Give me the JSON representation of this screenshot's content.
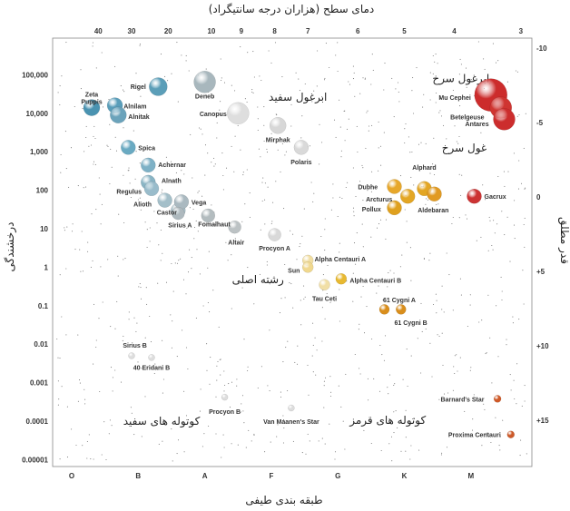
{
  "chart_data": {
    "type": "scatter",
    "title": "",
    "top_axis": {
      "label": "دمای سطح (هزاران درجه سانتیگراد)",
      "ticks": [
        "40",
        "30",
        "20",
        "10",
        "9",
        "8",
        "7",
        "6",
        "5",
        "4",
        "3"
      ],
      "tick_positions_class": [
        0.4,
        0.9,
        1.45,
        2.1,
        2.55,
        3.05,
        3.55,
        4.3,
        5.0,
        5.75,
        6.75
      ]
    },
    "x_axis": {
      "label": "طبقه بندی طیفی",
      "categories": [
        "O",
        "B",
        "A",
        "F",
        "G",
        "K",
        "M"
      ]
    },
    "y_axis_left": {
      "label": "درخشندگی",
      "ticks": [
        100000,
        10000,
        1000,
        100,
        10,
        1,
        0.1,
        0.01,
        0.001,
        0.0001,
        1e-05
      ],
      "tick_labels": [
        "100,000",
        "10,000",
        "1,000",
        "100",
        "10",
        "1",
        "0.1",
        "0.01",
        "0.001",
        "0.0001",
        "0.00001"
      ],
      "scale": "log",
      "ylim": [
        1e-05,
        100000
      ]
    },
    "y_axis_right": {
      "label": "قدر مطلق",
      "ticks": [
        "-10",
        "-5",
        "0",
        "+5",
        "+10",
        "+15"
      ],
      "tick_values": [
        -10,
        -5,
        0,
        5,
        10,
        15
      ]
    },
    "regions": [
      {
        "label": "ابرغول سرخ",
        "class": 5.85,
        "lum": 79400
      },
      {
        "label": "ابرغول سفید",
        "class": 3.4,
        "lum": 26300
      },
      {
        "label": "غول سرخ",
        "class": 5.9,
        "lum": 1259
      },
      {
        "label": "رشته اصلی",
        "class": 2.8,
        "lum": 0.48
      },
      {
        "label": "کوتوله های قرمز",
        "class": 4.75,
        "lum": 0.000105
      },
      {
        "label": "کوتوله های سفید",
        "class": 1.35,
        "lum": 0.0001
      }
    ],
    "stars": [
      {
        "name": "Zeta Puppis",
        "class": 0.3,
        "lum": 14000,
        "color": "#4a93b1",
        "r": 9,
        "lx": 0.3,
        "ly": 31600,
        "anchor": "middle"
      },
      {
        "name": "Rigel",
        "class": 1.3,
        "lum": 49000,
        "color": "#5b9eb8",
        "r": 10,
        "lx": 1.0,
        "ly": 50100,
        "anchor": "middle"
      },
      {
        "name": "Deneb",
        "class": 2.0,
        "lum": 65000,
        "color": "#a8b7bd",
        "r": 12,
        "lx": 2.0,
        "ly": 28200,
        "anchor": "middle"
      },
      {
        "name": "Alnilam",
        "class": 0.65,
        "lum": 16000,
        "color": "#5a9eba",
        "r": 8.5,
        "lx": 0.78,
        "ly": 15800,
        "anchor": "start"
      },
      {
        "name": "Alnitak",
        "class": 0.7,
        "lum": 9000,
        "color": "#6ba3bb",
        "r": 9,
        "lx": 0.85,
        "ly": 8510,
        "anchor": "start"
      },
      {
        "name": "Canopus",
        "class": 2.5,
        "lum": 10000,
        "color": "#dedede",
        "r": 12,
        "lx": 2.33,
        "ly": 10000,
        "anchor": "end"
      },
      {
        "name": "Mirphak",
        "class": 3.1,
        "lum": 4800,
        "color": "#d7d7d7",
        "r": 9,
        "lx": 3.1,
        "ly": 2090,
        "anchor": "middle"
      },
      {
        "name": "Polaris",
        "class": 3.45,
        "lum": 1300,
        "color": "#d9d9d9",
        "r": 8,
        "lx": 3.45,
        "ly": 562,
        "anchor": "middle"
      },
      {
        "name": "Spica",
        "class": 0.85,
        "lum": 1300,
        "color": "#6aaac2",
        "r": 8,
        "lx": 1.0,
        "ly": 1290,
        "anchor": "start"
      },
      {
        "name": "Achernar",
        "class": 1.15,
        "lum": 450,
        "color": "#7eb1c6",
        "r": 8,
        "lx": 1.3,
        "ly": 468,
        "anchor": "start"
      },
      {
        "name": "Alnath",
        "class": 1.15,
        "lum": 160,
        "color": "#89b4c4",
        "r": 8,
        "lx": 1.35,
        "ly": 182,
        "anchor": "start"
      },
      {
        "name": "Regulus",
        "class": 1.2,
        "lum": 110,
        "color": "#99bccb",
        "r": 8,
        "lx": 1.05,
        "ly": 95,
        "anchor": "end"
      },
      {
        "name": "Alioth",
        "class": 1.4,
        "lum": 55,
        "color": "#a4bfc9",
        "r": 8,
        "lx": 1.2,
        "ly": 45,
        "anchor": "end"
      },
      {
        "name": "Castor",
        "class": 1.6,
        "lum": 30,
        "color": "#a8bec6",
        "r": 8,
        "lx": 1.28,
        "ly": 27.5,
        "anchor": "start"
      },
      {
        "name": "Vega",
        "class": 1.65,
        "lum": 50,
        "color": "#aab9c0",
        "r": 8,
        "lx": 1.8,
        "ly": 50,
        "anchor": "start"
      },
      {
        "name": "Sirius A",
        "class": 1.6,
        "lum": 25,
        "color": "#aeb9be",
        "r": 7,
        "lx": 1.45,
        "ly": 12.6,
        "anchor": "start"
      },
      {
        "name": "Fomalhaut",
        "class": 2.05,
        "lum": 22,
        "color": "#b3bcbf",
        "r": 7.5,
        "lx": 1.9,
        "ly": 13.5,
        "anchor": "start"
      },
      {
        "name": "Altair",
        "class": 2.45,
        "lum": 11,
        "color": "#bcc2c4",
        "r": 7,
        "lx": 2.35,
        "ly": 4.6,
        "anchor": "start"
      },
      {
        "name": "Procyon A",
        "class": 3.05,
        "lum": 7,
        "color": "#d9d9d9",
        "r": 7,
        "lx": 3.05,
        "ly": 3.2,
        "anchor": "middle"
      },
      {
        "name": "Alpha Centauri A",
        "class": 3.55,
        "lum": 1.5,
        "color": "#f1dea2",
        "r": 6,
        "lx": 3.65,
        "ly": 1.66,
        "anchor": "start"
      },
      {
        "name": "Sun",
        "class": 3.55,
        "lum": 1.0,
        "color": "#f0d88e",
        "r": 6,
        "lx": 3.34,
        "ly": 0.85,
        "anchor": "middle"
      },
      {
        "name": "Alpha Centauri B",
        "class": 4.05,
        "lum": 0.5,
        "color": "#e8b931",
        "r": 6,
        "lx": 4.18,
        "ly": 0.46,
        "anchor": "start"
      },
      {
        "name": "Tau Ceti",
        "class": 3.8,
        "lum": 0.35,
        "color": "#f1dfa6",
        "r": 6,
        "lx": 3.8,
        "ly": 0.158,
        "anchor": "middle"
      },
      {
        "name": "61 Cygni A",
        "class": 4.7,
        "lum": 0.08,
        "color": "#d98e1c",
        "r": 5.5,
        "lx": 4.68,
        "ly": 0.145,
        "anchor": "start"
      },
      {
        "name": "61 Cygni B",
        "class": 4.95,
        "lum": 0.08,
        "color": "#d98e1c",
        "r": 5.5,
        "lx": 4.85,
        "ly": 0.037,
        "anchor": "start"
      },
      {
        "name": "Mu Cephei",
        "class": 6.3,
        "lum": 30000,
        "color": "#cc2c2c",
        "r": 18,
        "lx": 6.0,
        "ly": 26000,
        "anchor": "end"
      },
      {
        "name": "Betelgeuse",
        "class": 6.45,
        "lum": 14000,
        "color": "#cf3531",
        "r": 12,
        "lx": 6.2,
        "ly": 8200,
        "anchor": "end"
      },
      {
        "name": "Antares",
        "class": 6.5,
        "lum": 7000,
        "color": "#cc2d2d",
        "r": 12,
        "lx": 6.27,
        "ly": 5500,
        "anchor": "end"
      },
      {
        "name": "Alphard",
        "class": 5.3,
        "lum": 110,
        "color": "#e3a624",
        "r": 8,
        "lx": 5.3,
        "ly": 398,
        "anchor": "middle"
      },
      {
        "name": "Dubhe",
        "class": 4.85,
        "lum": 125,
        "color": "#e7a72a",
        "r": 8,
        "lx": 4.6,
        "ly": 126,
        "anchor": "end"
      },
      {
        "name": "Arcturus",
        "class": 5.05,
        "lum": 70,
        "color": "#e3a624",
        "r": 8,
        "lx": 4.82,
        "ly": 60,
        "anchor": "end"
      },
      {
        "name": "Pollux",
        "class": 4.85,
        "lum": 35,
        "color": "#dfa01e",
        "r": 8,
        "lx": 4.65,
        "ly": 33,
        "anchor": "end"
      },
      {
        "name": "Aldebaran",
        "class": 5.45,
        "lum": 80,
        "color": "#e19a22",
        "r": 8,
        "lx": 5.2,
        "ly": 31.6,
        "anchor": "start"
      },
      {
        "name": "Gacrux",
        "class": 6.05,
        "lum": 70,
        "color": "#cc3333",
        "r": 8,
        "lx": 6.2,
        "ly": 70,
        "anchor": "start"
      },
      {
        "name": "Sirius B",
        "class": 0.9,
        "lum": 0.005,
        "color": "#dddddd",
        "r": 3.5,
        "lx": 0.95,
        "ly": 0.0095,
        "anchor": "middle"
      },
      {
        "name": "40 Eridani B",
        "class": 1.2,
        "lum": 0.0045,
        "color": "#dddddd",
        "r": 3.5,
        "lx": 1.2,
        "ly": 0.0025,
        "anchor": "middle"
      },
      {
        "name": "Procyon B",
        "class": 2.3,
        "lum": 0.00042,
        "color": "#dddddd",
        "r": 3.5,
        "lx": 2.3,
        "ly": 0.00018,
        "anchor": "middle"
      },
      {
        "name": "Van Maanen's Star",
        "class": 3.3,
        "lum": 0.00022,
        "color": "#dddddd",
        "r": 3.5,
        "lx": 3.3,
        "ly": 0.0001,
        "anchor": "middle"
      },
      {
        "name": "Barnard's Star",
        "class": 6.4,
        "lum": 0.00038,
        "color": "#d05a28",
        "r": 4,
        "lx": 6.2,
        "ly": 0.00038,
        "anchor": "end"
      },
      {
        "name": "Proxima Centauri",
        "class": 6.6,
        "lum": 4.5e-05,
        "color": "#cd5a29",
        "r": 4,
        "lx": 6.45,
        "ly": 4.5e-05,
        "anchor": "end"
      }
    ],
    "background_stars": "scattered dots"
  }
}
